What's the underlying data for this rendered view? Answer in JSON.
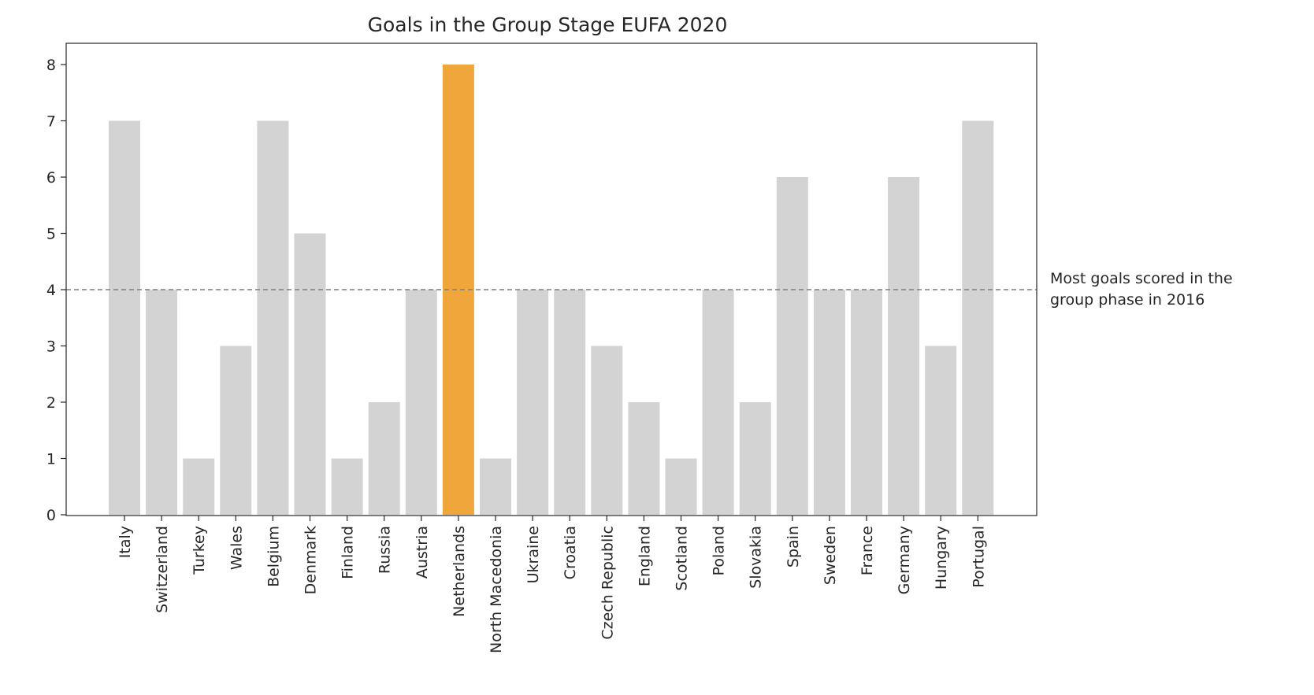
{
  "chart_data": {
    "type": "bar",
    "title": "Goals in the Group Stage EUFA 2020",
    "xlabel": "",
    "ylabel": "",
    "ylim": [
      0,
      8.4
    ],
    "yticks": [
      0,
      1,
      2,
      3,
      4,
      5,
      6,
      7,
      8
    ],
    "grid": false,
    "categories": [
      "Italy",
      "Switzerland",
      "Turkey",
      "Wales",
      "Belgium",
      "Denmark",
      "Finland",
      "Russia",
      "Austria",
      "Netherlands",
      "North Macedonia",
      "Ukraine",
      "Croatia",
      "Czech Republic",
      "England",
      "Scotland",
      "Poland",
      "Slovakia",
      "Spain",
      "Sweden",
      "France",
      "Germany",
      "Hungary",
      "Portugal"
    ],
    "values": [
      7,
      4,
      1,
      3,
      7,
      5,
      1,
      2,
      4,
      8,
      1,
      4,
      4,
      3,
      2,
      1,
      4,
      2,
      6,
      4,
      4,
      6,
      3,
      7
    ],
    "highlight": "Netherlands",
    "colors": {
      "default": "#d3d3d3",
      "highlight": "#f0a63a",
      "reference_line": "#7f7f7f"
    },
    "reference_line": {
      "y": 4,
      "style": "dashed",
      "label_lines": [
        "Most goals scored in the",
        "group phase in 2016"
      ]
    }
  }
}
